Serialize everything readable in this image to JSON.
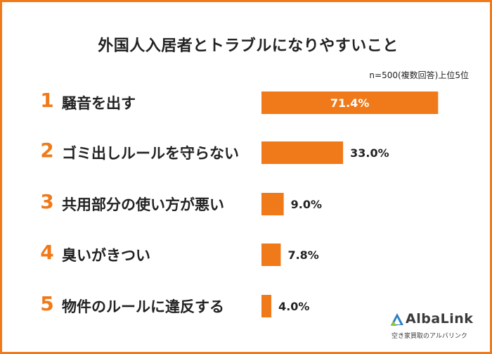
{
  "chart_data": {
    "type": "bar",
    "orientation": "horizontal",
    "title": "外国人入居者とトラブルになりやすいこと",
    "subtitle": "n=500(複数回答)上位5位",
    "ranks": [
      "1",
      "2",
      "3",
      "4",
      "5"
    ],
    "categories": [
      "騒音を出す",
      "ゴミ出しルールを守らない",
      "共用部分の使い方が悪い",
      "臭いがきつい",
      "物件のルールに違反する"
    ],
    "values": [
      71.4,
      33.0,
      9.0,
      7.8,
      4.0
    ],
    "value_labels": [
      "71.4%",
      "33.0%",
      "9.0%",
      "7.8%",
      "4.0%"
    ],
    "xlim": [
      0,
      100
    ],
    "grid": false,
    "legend": "none"
  },
  "colors": {
    "accent": "#f07a1a",
    "text": "#222222",
    "logo_blue": "#2d7fc1"
  },
  "logo": {
    "name": "AlbaLink",
    "tagline": "空き家買取のアルバリンク",
    "icon": "albalink-logo-icon"
  }
}
